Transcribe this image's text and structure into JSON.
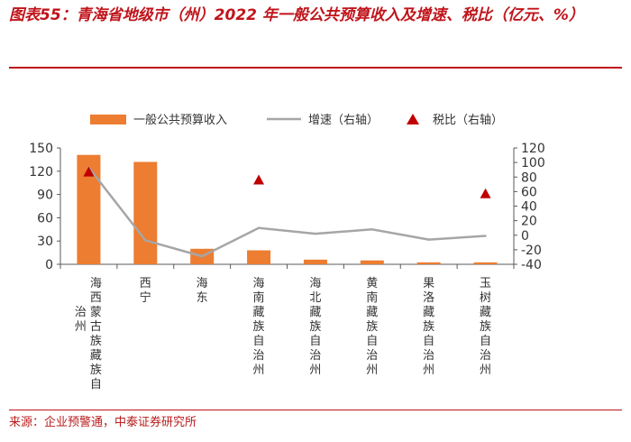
{
  "title": "图表55：青海省地级市（州）2022 年一般公共预算收入及增速、税比（亿元、%）",
  "source": "来源：企业预警通，中泰证券研究所",
  "colors": {
    "accent": "#c0141b",
    "bar": "#ed7d31",
    "line": "#a6a6a6",
    "marker": "#c00000",
    "axis": "#595959"
  },
  "chart_data": {
    "type": "bar",
    "categories": [
      "海西蒙古族藏族自治州",
      "西宁",
      "海东",
      "海南藏族自治州",
      "海北藏族自治州",
      "黄南藏族自治州",
      "果洛藏族自治州",
      "玉树藏族自治州"
    ],
    "ylim": [
      0,
      150
    ],
    "yticks": [
      0,
      30,
      60,
      90,
      120,
      150
    ],
    "y2lim": [
      -40,
      120
    ],
    "y2ticks": [
      -40,
      -20,
      0,
      20,
      40,
      60,
      80,
      100,
      120
    ],
    "series": [
      {
        "name": "一般公共预算收入",
        "type": "bar",
        "axis": "left",
        "values": [
          141,
          132,
          20,
          18,
          6,
          5,
          2.5,
          2.5
        ]
      },
      {
        "name": "增速（右轴）",
        "type": "line",
        "axis": "right",
        "values": [
          93,
          -7,
          -29,
          10,
          2,
          8,
          -6,
          -1
        ]
      },
      {
        "name": "税比（右轴）",
        "type": "scatter",
        "axis": "right",
        "values": [
          87,
          null,
          null,
          76,
          null,
          null,
          null,
          57
        ]
      }
    ]
  }
}
